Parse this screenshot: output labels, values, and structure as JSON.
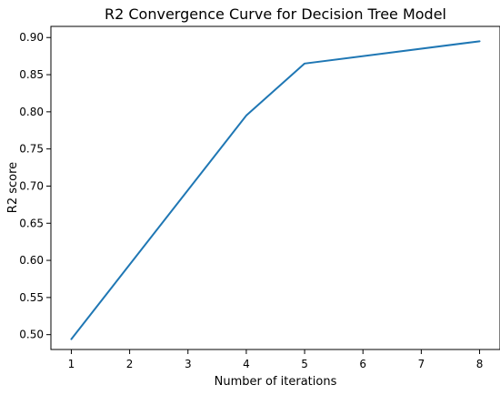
{
  "chart_data": {
    "type": "line",
    "title": "R2 Convergence Curve for Decision Tree Model",
    "xlabel": "Number of iterations",
    "ylabel": "R2 score",
    "xlim": [
      0.65,
      8.35
    ],
    "ylim": [
      0.48,
      0.915
    ],
    "x_ticks": [
      1,
      2,
      3,
      4,
      5,
      6,
      7,
      8
    ],
    "y_ticks": [
      0.5,
      0.55,
      0.6,
      0.65,
      0.7,
      0.75,
      0.8,
      0.85,
      0.9
    ],
    "y_tick_labels": [
      "0.50",
      "0.55",
      "0.60",
      "0.65",
      "0.70",
      "0.75",
      "0.80",
      "0.85",
      "0.90"
    ],
    "grid": false,
    "series": [
      {
        "color": "#1f77b4",
        "x": [
          1,
          4,
          5,
          8
        ],
        "y": [
          0.494,
          0.795,
          0.865,
          0.895
        ]
      }
    ]
  }
}
